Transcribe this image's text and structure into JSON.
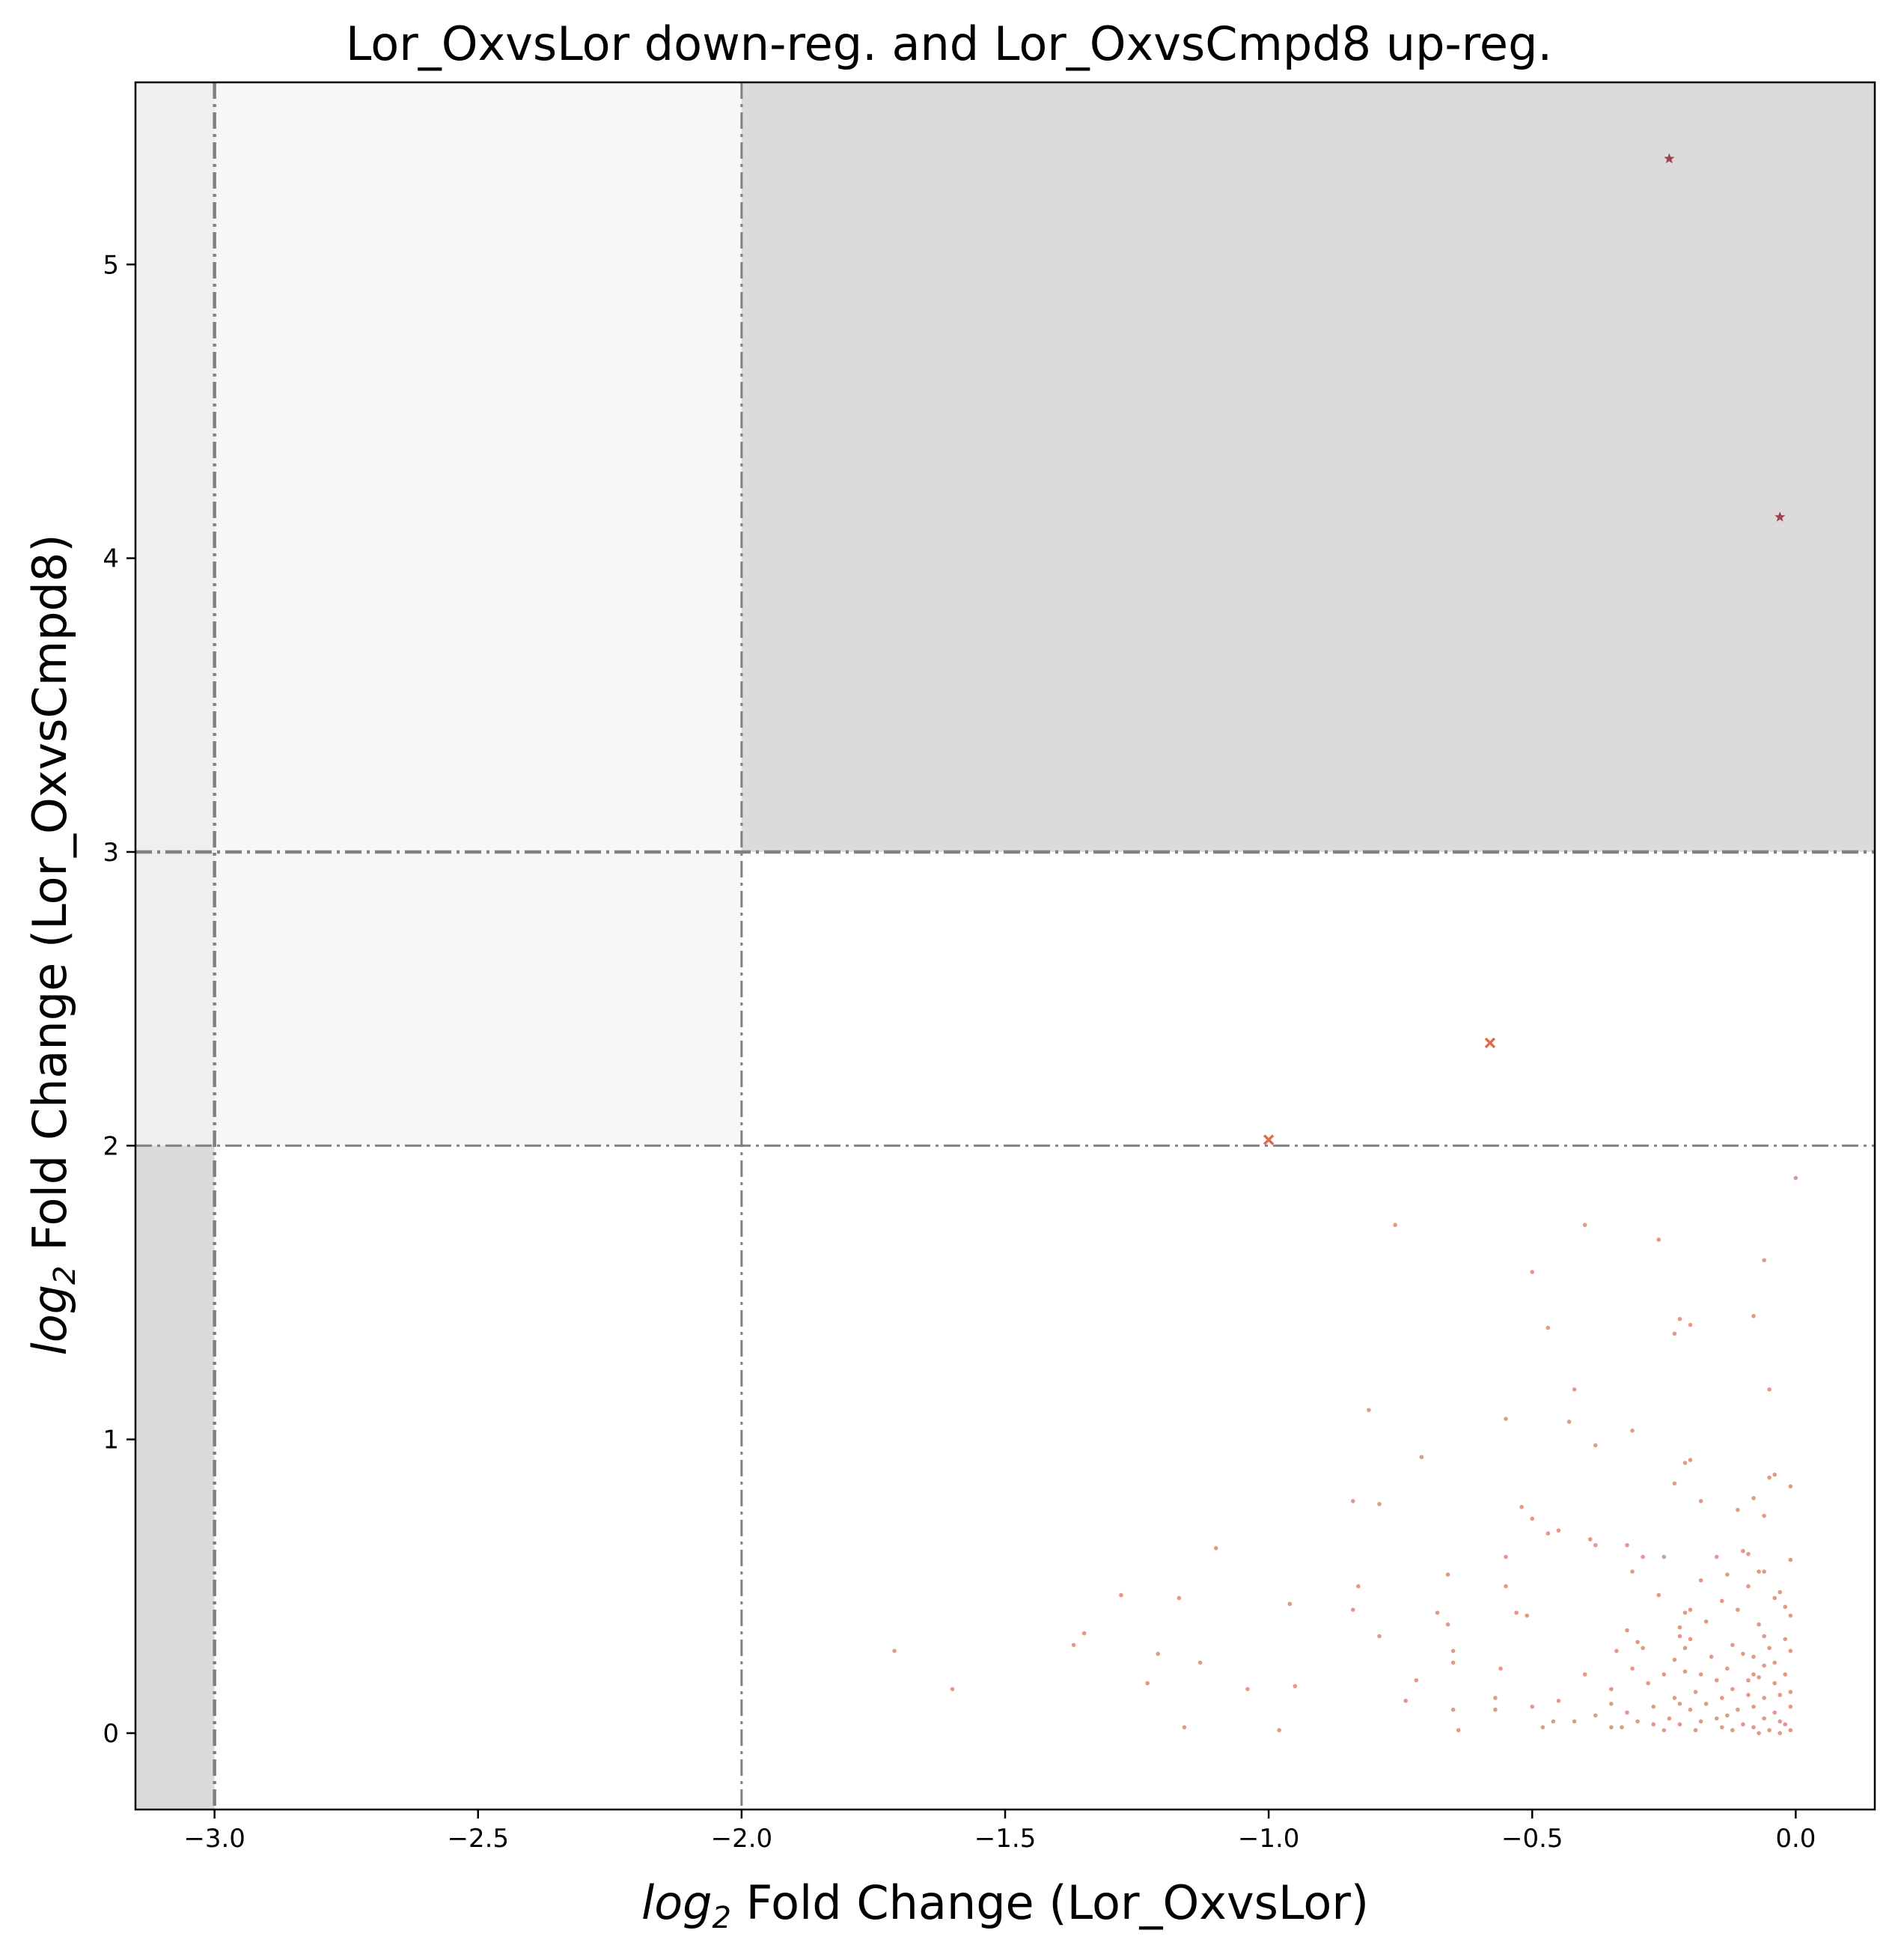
{
  "chart_data": {
    "type": "scatter",
    "title": "Lor_OxvsLor down-reg. and Lor_OxvsCmpd8 up-reg.",
    "xlabel": {
      "log_part": "log",
      "sub": "2",
      "rest": " Fold Change (Lor_OxvsLor)"
    },
    "ylabel": {
      "log_part": "log",
      "sub": "2",
      "rest": " Fold Change (Lor_OxvsCmpd8)"
    },
    "xlim": [
      -3.15,
      0.15
    ],
    "ylim": [
      -0.26,
      5.62
    ],
    "xticks": [
      -3.0,
      -2.5,
      -2.0,
      -1.5,
      -1.0,
      -0.5,
      0.0
    ],
    "xtick_labels": [
      "−3.0",
      "−2.5",
      "−2.0",
      "−1.5",
      "−1.0",
      "−0.5",
      "0.0"
    ],
    "yticks": [
      0,
      1,
      2,
      3,
      4,
      5
    ],
    "ytick_labels": [
      "0",
      "1",
      "2",
      "3",
      "4",
      "5"
    ],
    "grid": false,
    "thresholds": {
      "x_strong": -3.0,
      "x_weak": -2.0,
      "y_strong": 3.0,
      "y_weak": 2.0
    },
    "colors": {
      "shade_dark": "#dbdbdb",
      "shade_light": "#f7f7f7",
      "shade_mid": "#efefef",
      "threshold_line": "#808080",
      "point": "#d9775c",
      "cross": "#e06c4c",
      "star": "#a04050"
    },
    "series": [
      {
        "marker": "star",
        "points": [
          [
            -0.24,
            5.36
          ],
          [
            -0.03,
            4.14
          ]
        ]
      },
      {
        "marker": "x",
        "points": [
          [
            -0.58,
            2.35
          ],
          [
            -1.0,
            2.02
          ]
        ]
      },
      {
        "marker": "dot",
        "points": [
          [
            0.0,
            1.89
          ],
          [
            -0.76,
            1.73
          ],
          [
            -0.4,
            1.73
          ],
          [
            -0.26,
            1.68
          ],
          [
            -0.06,
            1.61
          ],
          [
            -0.5,
            1.57
          ],
          [
            -0.08,
            1.42
          ],
          [
            -0.22,
            1.41
          ],
          [
            -0.2,
            1.39
          ],
          [
            -0.47,
            1.38
          ],
          [
            -0.23,
            1.36
          ],
          [
            -0.05,
            1.17
          ],
          [
            -0.42,
            1.17
          ],
          [
            -0.81,
            1.1
          ],
          [
            -0.55,
            1.07
          ],
          [
            -0.43,
            1.06
          ],
          [
            -0.31,
            1.03
          ],
          [
            -0.38,
            0.98
          ],
          [
            -0.2,
            0.93
          ],
          [
            -0.21,
            0.92
          ],
          [
            -0.71,
            0.94
          ],
          [
            -0.04,
            0.88
          ],
          [
            -0.05,
            0.87
          ],
          [
            -0.01,
            0.84
          ],
          [
            -0.23,
            0.85
          ],
          [
            -0.08,
            0.8
          ],
          [
            -0.84,
            0.79
          ],
          [
            -0.79,
            0.78
          ],
          [
            -0.18,
            0.79
          ],
          [
            -0.52,
            0.77
          ],
          [
            -0.11,
            0.76
          ],
          [
            -0.06,
            0.74
          ],
          [
            -0.5,
            0.73
          ],
          [
            -0.47,
            0.68
          ],
          [
            -0.45,
            0.69
          ],
          [
            -0.39,
            0.66
          ],
          [
            -1.1,
            0.63
          ],
          [
            -0.38,
            0.64
          ],
          [
            -0.32,
            0.64
          ],
          [
            -0.1,
            0.62
          ],
          [
            -0.09,
            0.61
          ],
          [
            -0.25,
            0.6
          ],
          [
            -0.15,
            0.6
          ],
          [
            -0.29,
            0.6
          ],
          [
            -0.55,
            0.6
          ],
          [
            -0.01,
            0.59
          ],
          [
            -0.07,
            0.55
          ],
          [
            -0.06,
            0.55
          ],
          [
            -0.13,
            0.54
          ],
          [
            -0.66,
            0.54
          ],
          [
            -0.31,
            0.55
          ],
          [
            -0.18,
            0.52
          ],
          [
            -0.09,
            0.5
          ],
          [
            -0.83,
            0.5
          ],
          [
            -0.55,
            0.5
          ],
          [
            -0.03,
            0.48
          ],
          [
            -0.04,
            0.46
          ],
          [
            -1.28,
            0.47
          ],
          [
            -1.17,
            0.46
          ],
          [
            -0.26,
            0.47
          ],
          [
            -0.14,
            0.45
          ],
          [
            -0.96,
            0.44
          ],
          [
            -0.02,
            0.43
          ],
          [
            -0.11,
            0.42
          ],
          [
            -0.2,
            0.42
          ],
          [
            -0.68,
            0.41
          ],
          [
            -0.84,
            0.42
          ],
          [
            -0.21,
            0.41
          ],
          [
            -0.01,
            0.4
          ],
          [
            -0.53,
            0.41
          ],
          [
            -0.51,
            0.4
          ],
          [
            -0.17,
            0.38
          ],
          [
            -0.07,
            0.37
          ],
          [
            -0.22,
            0.36
          ],
          [
            -0.66,
            0.37
          ],
          [
            -0.32,
            0.35
          ],
          [
            -1.35,
            0.34
          ],
          [
            -0.79,
            0.33
          ],
          [
            -0.22,
            0.33
          ],
          [
            -0.06,
            0.33
          ],
          [
            -0.02,
            0.32
          ],
          [
            -0.3,
            0.31
          ],
          [
            -0.2,
            0.32
          ],
          [
            -0.12,
            0.3
          ],
          [
            -1.37,
            0.3
          ],
          [
            -0.29,
            0.29
          ],
          [
            -0.05,
            0.29
          ],
          [
            -0.01,
            0.28
          ],
          [
            -0.21,
            0.29
          ],
          [
            -0.34,
            0.28
          ],
          [
            -1.71,
            0.28
          ],
          [
            -1.21,
            0.27
          ],
          [
            -0.1,
            0.27
          ],
          [
            -0.65,
            0.28
          ],
          [
            -0.08,
            0.26
          ],
          [
            -0.16,
            0.26
          ],
          [
            -0.23,
            0.25
          ],
          [
            -0.04,
            0.24
          ],
          [
            -0.65,
            0.24
          ],
          [
            -1.13,
            0.24
          ],
          [
            -0.06,
            0.23
          ],
          [
            -0.31,
            0.22
          ],
          [
            -0.56,
            0.22
          ],
          [
            -0.13,
            0.22
          ],
          [
            -0.21,
            0.21
          ],
          [
            -0.02,
            0.2
          ],
          [
            -0.4,
            0.2
          ],
          [
            -0.18,
            0.2
          ],
          [
            -0.08,
            0.2
          ],
          [
            -0.25,
            0.2
          ],
          [
            -0.15,
            0.18
          ],
          [
            -0.07,
            0.19
          ],
          [
            -0.09,
            0.18
          ],
          [
            -0.72,
            0.18
          ],
          [
            -0.28,
            0.17
          ],
          [
            -0.04,
            0.17
          ],
          [
            -1.23,
            0.17
          ],
          [
            -1.04,
            0.15
          ],
          [
            -0.95,
            0.16
          ],
          [
            -1.6,
            0.15
          ],
          [
            -0.12,
            0.15
          ],
          [
            -0.35,
            0.15
          ],
          [
            -0.19,
            0.14
          ],
          [
            -0.01,
            0.14
          ],
          [
            -0.03,
            0.13
          ],
          [
            -0.09,
            0.13
          ],
          [
            -0.23,
            0.12
          ],
          [
            -0.14,
            0.12
          ],
          [
            -0.06,
            0.12
          ],
          [
            -0.57,
            0.12
          ],
          [
            -0.74,
            0.11
          ],
          [
            -0.45,
            0.11
          ],
          [
            -0.22,
            0.1
          ],
          [
            -0.17,
            0.1
          ],
          [
            -0.35,
            0.1
          ],
          [
            -0.08,
            0.09
          ],
          [
            -0.01,
            0.09
          ],
          [
            -0.27,
            0.09
          ],
          [
            -0.5,
            0.09
          ],
          [
            -0.57,
            0.08
          ],
          [
            -0.65,
            0.08
          ],
          [
            -0.11,
            0.08
          ],
          [
            -0.2,
            0.08
          ],
          [
            -0.04,
            0.07
          ],
          [
            -0.32,
            0.07
          ],
          [
            -0.13,
            0.06
          ],
          [
            -0.38,
            0.06
          ],
          [
            -0.24,
            0.05
          ],
          [
            -0.15,
            0.05
          ],
          [
            -0.06,
            0.05
          ],
          [
            -0.42,
            0.04
          ],
          [
            -0.46,
            0.04
          ],
          [
            -0.03,
            0.04
          ],
          [
            -0.18,
            0.04
          ],
          [
            -0.3,
            0.04
          ],
          [
            -0.1,
            0.03
          ],
          [
            -0.02,
            0.03
          ],
          [
            -0.22,
            0.03
          ],
          [
            -0.27,
            0.03
          ],
          [
            -0.48,
            0.02
          ],
          [
            -0.35,
            0.02
          ],
          [
            -0.14,
            0.02
          ],
          [
            -0.08,
            0.02
          ],
          [
            -1.16,
            0.02
          ],
          [
            -0.98,
            0.01
          ],
          [
            -0.64,
            0.01
          ],
          [
            -0.25,
            0.01
          ],
          [
            -0.12,
            0.01
          ],
          [
            -0.05,
            0.01
          ],
          [
            -0.01,
            0.01
          ],
          [
            -0.19,
            0.01
          ],
          [
            -0.33,
            0.02
          ],
          [
            -0.07,
            0.0
          ],
          [
            -0.03,
            0.0
          ]
        ]
      }
    ]
  }
}
